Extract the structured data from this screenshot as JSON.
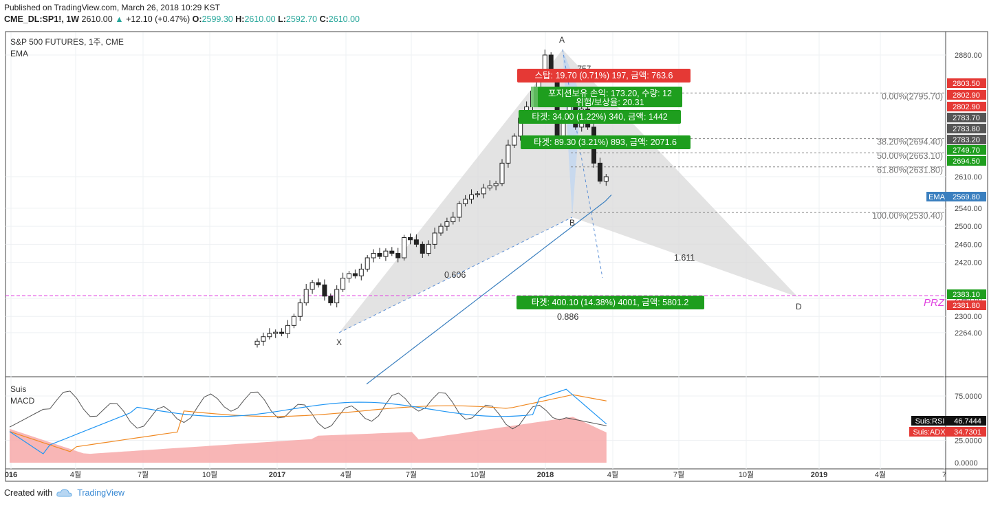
{
  "header": {
    "published": "Published on TradingView.com, March 26, 2018 10:29 KST",
    "symbol": "CME_DL:SP1!, 1W",
    "last": "2610.00",
    "change_arrow": "▲",
    "change": "+12.10 (+0.47%)",
    "o_label": "O:",
    "o": "2599.30",
    "h_label": "H:",
    "h": "2610.00",
    "l_label": "L:",
    "l": "2592.70",
    "c_label": "C:",
    "c": "2610.00"
  },
  "main_pane": {
    "title": "S&P 500 FUTURES, 1주, CME",
    "indicator": "EMA"
  },
  "sub_pane": {
    "indicator1": "Suis",
    "indicator2": "MACD",
    "rsi_label": "Suis:RSI",
    "rsi_value": "46.7444",
    "adx_label": "Suis:ADX",
    "adx_value": "34.7301"
  },
  "pattern": {
    "points": [
      "X",
      "A",
      "B",
      "D"
    ],
    "ratio_b": "0.606",
    "ratio_d": "1.611",
    "ratio_c": "0.886",
    "ratio_partial": ".757",
    "prz": "PRZ"
  },
  "fib_levels": [
    {
      "label": "0.00%(2795.70)",
      "price": 2795.7
    },
    {
      "label": "38.20%(2694.40)",
      "price": 2694.4
    },
    {
      "label": "50.00%(2663.10)",
      "price": 2663.1
    },
    {
      "label": "61.80%(2631.80)",
      "price": 2631.8
    },
    {
      "label": "100.00%(2530.40)",
      "price": 2530.4
    }
  ],
  "trade_labels": {
    "stop": "스탑: 19.70 (0.71%) 197, 금액: 763.6",
    "position": "포지션보유 손익: 173.20, 수량: 12",
    "risk_reward": "위험/보상율: 20.31",
    "target1": "타겟: 34.00 (1.22%) 340, 금액: 1442",
    "target2": "타겟: 89.30 (3.21%) 893, 금액: 2071.6",
    "target3": "타겟: 400.10 (14.38%) 4001, 금액: 5801.2"
  },
  "price_axis": {
    "ticks": [
      "2880.00",
      "2610.00",
      "2540.00",
      "2500.00",
      "2460.00",
      "2420.00",
      "2340.00",
      "2300.00",
      "2264.00"
    ],
    "badges": [
      {
        "label": "2803.50",
        "color": "#e53935"
      },
      {
        "label": "2802.90",
        "color": "#e53935"
      },
      {
        "label": "2802.90",
        "color": "#e53935"
      },
      {
        "label": "2783.70",
        "color": "#555555"
      },
      {
        "label": "2783.80",
        "color": "#555555"
      },
      {
        "label": "2783.20",
        "color": "#555555"
      },
      {
        "label": "2749.70",
        "color": "#1e9e1e"
      },
      {
        "label": "2694.50",
        "color": "#1e9e1e"
      },
      {
        "label": "2569.80",
        "color": "#3a7fbf"
      },
      {
        "label": "2383.10",
        "color": "#1e9e1e"
      },
      {
        "label": "2381.80",
        "color": "#e53935"
      }
    ],
    "ema_tag": "EMA"
  },
  "osc_axis": {
    "ticks": [
      "75.0000",
      "25.0000",
      "0.0000"
    ]
  },
  "time_axis": {
    "labels": [
      {
        "t": "016",
        "bold": true
      },
      {
        "t": "4월",
        "bold": false
      },
      {
        "t": "7월",
        "bold": false
      },
      {
        "t": "10월",
        "bold": false
      },
      {
        "t": "2017",
        "bold": true
      },
      {
        "t": "4월",
        "bold": false
      },
      {
        "t": "7월",
        "bold": false
      },
      {
        "t": "10월",
        "bold": false
      },
      {
        "t": "2018",
        "bold": true
      },
      {
        "t": "4월",
        "bold": false
      },
      {
        "t": "7월",
        "bold": false
      },
      {
        "t": "10월",
        "bold": false
      },
      {
        "t": "2019",
        "bold": true
      },
      {
        "t": "4월",
        "bold": false
      },
      {
        "t": "7",
        "bold": false
      }
    ]
  },
  "chart_data": {
    "type": "candlestick",
    "title": "S&P 500 FUTURES, 1주, CME",
    "ylim": [
      2230,
      2900
    ],
    "y_ticks": [
      2264,
      2300,
      2340,
      2420,
      2460,
      2500,
      2540,
      2610,
      2880
    ],
    "last_close": 2610.0,
    "ema_last": 2569.8,
    "candles_close_approx": [
      2245,
      2255,
      2262,
      2265,
      2262,
      2280,
      2300,
      2330,
      2360,
      2375,
      2370,
      2345,
      2330,
      2360,
      2385,
      2395,
      2390,
      2405,
      2430,
      2440,
      2433,
      2445,
      2440,
      2430,
      2475,
      2470,
      2460,
      2440,
      2460,
      2485,
      2500,
      2510,
      2520,
      2550,
      2560,
      2570,
      2572,
      2585,
      2590,
      2595,
      2640,
      2680,
      2700,
      2740,
      2765,
      2800,
      2830,
      2880,
      2830,
      2690,
      2740,
      2790,
      2720,
      2760,
      2720,
      2640,
      2600,
      2610
    ],
    "pattern_points": {
      "X": 2318,
      "A": 2880,
      "B": 2530.4,
      "D": 2383.1
    },
    "oscillator": {
      "ylim": [
        0,
        100
      ],
      "rsi_last": 46.7444,
      "adx_last": 34.7301
    }
  }
}
